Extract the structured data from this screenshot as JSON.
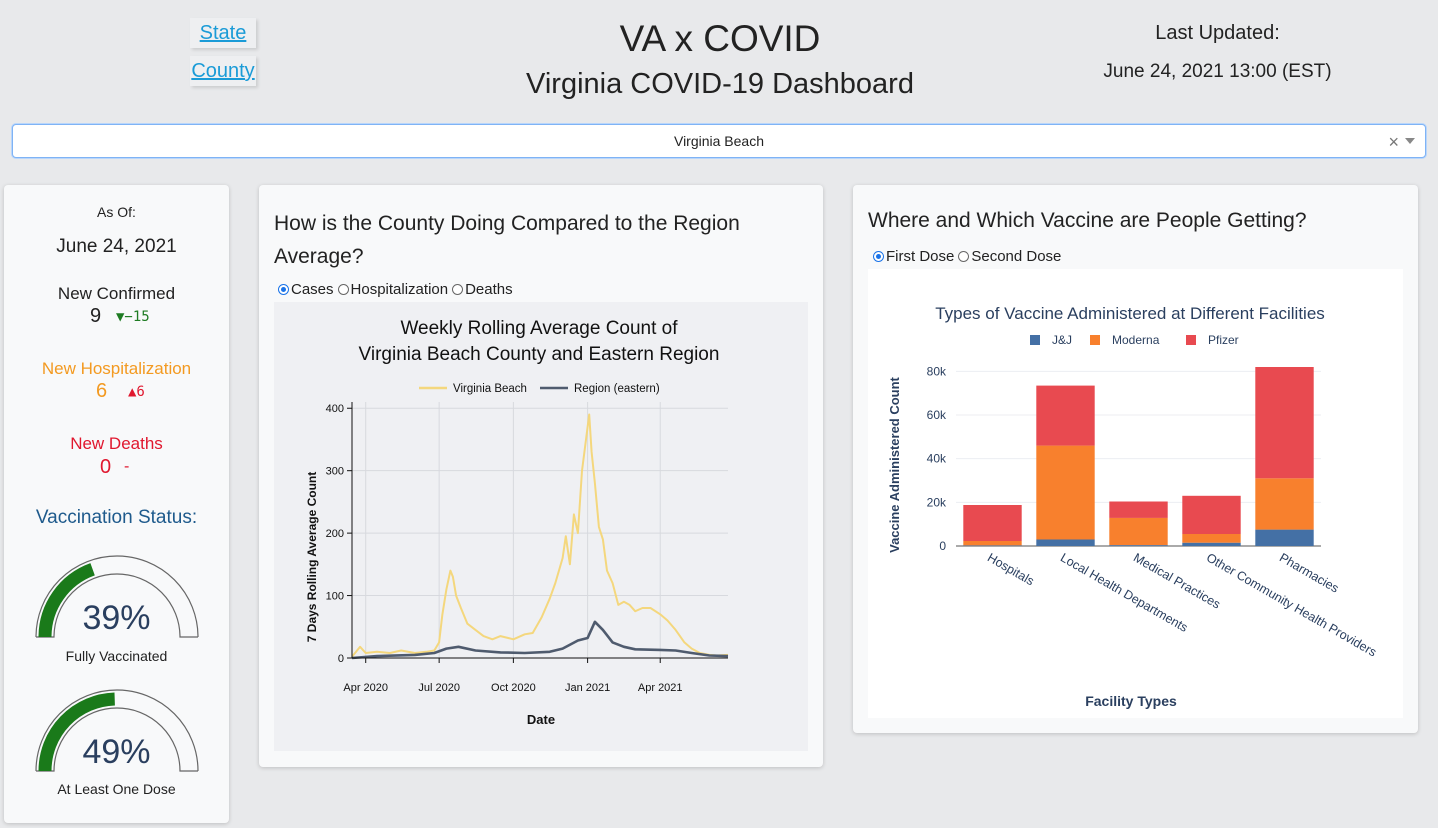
{
  "header": {
    "nav": {
      "state_label": "State",
      "county_label": "County"
    },
    "title": "VA x COVID",
    "subtitle": "Virginia COVID-19 Dashboard",
    "last_updated_label": "Last Updated:",
    "last_updated_value": "June 24, 2021 13:00 (EST)"
  },
  "selector": {
    "value": "Virginia Beach",
    "clear_glyph": "×"
  },
  "stats": {
    "as_of_label": "As Of:",
    "as_of_date": "June 24, 2021",
    "confirmed": {
      "label": "New Confirmed",
      "value": "9",
      "delta": "▼−15",
      "color": "#1e7b22"
    },
    "hospitalization": {
      "label": "New Hospitalization",
      "value": "6",
      "delta": "▲6",
      "color": "#f39a21",
      "delta_color": "#e0172e"
    },
    "deaths": {
      "label": "New Deaths",
      "value": "0",
      "delta": "-",
      "color": "#e0172e"
    },
    "vaccination_title": "Vaccination Status:",
    "gauges": [
      {
        "value": "39%",
        "fraction": 0.39,
        "label": "Fully Vaccinated"
      },
      {
        "value": "49%",
        "fraction": 0.49,
        "label": "At Least One Dose"
      }
    ]
  },
  "left_panel": {
    "question": "How is the County Doing Compared to the Region Average?",
    "options": [
      "Cases",
      "Hospitalization",
      "Deaths"
    ],
    "selected": "Cases"
  },
  "right_panel": {
    "question": "Where and Which Vaccine are People Getting?",
    "options": [
      "First Dose",
      "Second Dose"
    ],
    "selected": "First Dose"
  },
  "colors": {
    "accent": "#1a73e8",
    "county_line": "#f4d77d",
    "region_line": "#4f5b6e",
    "jj": "#4470a5",
    "moderna": "#f8802d",
    "pfizer": "#e84a50",
    "gauge": "#1a7a1a",
    "vax_title": "#1e5a8c"
  },
  "chart_data": [
    {
      "type": "line",
      "title_line1": "Weekly Rolling Average Count of",
      "title_line2": "Virginia Beach County and Eastern Region",
      "xlabel": "Date",
      "ylabel": "7 Days Rolling Average Count",
      "ylim": [
        0,
        410
      ],
      "y_ticks": [
        0,
        100,
        200,
        300,
        400
      ],
      "x_ticks": [
        "Apr 2020",
        "Jul 2020",
        "Oct 2020",
        "Jan 2021",
        "Apr 2021"
      ],
      "x_tick_dates": [
        "2020-04-01",
        "2020-07-01",
        "2020-10-01",
        "2021-01-01",
        "2021-04-01"
      ],
      "x_range": [
        "2020-03-15",
        "2021-06-24"
      ],
      "grid": true,
      "legend": "top",
      "series": [
        {
          "name": "Virginia Beach",
          "dates": [
            "2020-03-15",
            "2020-03-25",
            "2020-04-01",
            "2020-04-15",
            "2020-05-01",
            "2020-05-15",
            "2020-06-01",
            "2020-06-15",
            "2020-06-25",
            "2020-07-01",
            "2020-07-05",
            "2020-07-10",
            "2020-07-15",
            "2020-07-18",
            "2020-07-22",
            "2020-07-28",
            "2020-08-05",
            "2020-08-15",
            "2020-08-25",
            "2020-09-05",
            "2020-09-15",
            "2020-10-01",
            "2020-10-15",
            "2020-10-25",
            "2020-11-05",
            "2020-11-15",
            "2020-11-22",
            "2020-12-01",
            "2020-12-05",
            "2020-12-10",
            "2020-12-15",
            "2020-12-20",
            "2020-12-25",
            "2020-12-30",
            "2021-01-03",
            "2021-01-06",
            "2021-01-10",
            "2021-01-15",
            "2021-01-20",
            "2021-01-25",
            "2021-02-01",
            "2021-02-08",
            "2021-02-15",
            "2021-02-22",
            "2021-03-01",
            "2021-03-10",
            "2021-03-20",
            "2021-04-01",
            "2021-04-10",
            "2021-04-20",
            "2021-05-01",
            "2021-05-10",
            "2021-05-20",
            "2021-06-01",
            "2021-06-10",
            "2021-06-24"
          ],
          "values": [
            2,
            18,
            8,
            10,
            8,
            12,
            8,
            10,
            12,
            25,
            70,
            110,
            140,
            130,
            100,
            80,
            55,
            45,
            35,
            30,
            35,
            30,
            38,
            40,
            65,
            95,
            120,
            160,
            195,
            150,
            230,
            200,
            300,
            350,
            390,
            330,
            280,
            210,
            190,
            140,
            120,
            85,
            90,
            85,
            75,
            80,
            80,
            70,
            60,
            45,
            25,
            15,
            8,
            5,
            4,
            5
          ]
        },
        {
          "name": "Region (eastern)",
          "dates": [
            "2020-03-15",
            "2020-04-15",
            "2020-06-01",
            "2020-06-25",
            "2020-07-10",
            "2020-07-25",
            "2020-08-15",
            "2020-09-15",
            "2020-10-15",
            "2020-11-15",
            "2020-12-01",
            "2020-12-20",
            "2021-01-01",
            "2021-01-10",
            "2021-01-20",
            "2021-02-01",
            "2021-02-15",
            "2021-03-01",
            "2021-04-01",
            "2021-04-20",
            "2021-05-10",
            "2021-06-01",
            "2021-06-24"
          ],
          "values": [
            0,
            3,
            5,
            8,
            15,
            18,
            12,
            9,
            8,
            10,
            15,
            28,
            32,
            58,
            45,
            25,
            18,
            14,
            13,
            12,
            8,
            4,
            3
          ]
        }
      ]
    },
    {
      "type": "bar",
      "stacked": true,
      "title": "Types of Vaccine Administered at Different Facilities",
      "xlabel": "Facility Types",
      "ylabel": "Vaccine Administered Count",
      "ylim": [
        0,
        82000
      ],
      "y_ticks": [
        0,
        20000,
        40000,
        60000,
        80000
      ],
      "y_tick_labels": [
        "0",
        "20k",
        "40k",
        "60k",
        "80k"
      ],
      "legend": "top",
      "categories": [
        "Hospitals",
        "Local Health Departments",
        "Medical Practices",
        "Other Community Health Providers",
        "Pharmacies"
      ],
      "series": [
        {
          "name": "J&J",
          "values": [
            300,
            3000,
            400,
            1500,
            7500
          ]
        },
        {
          "name": "Moderna",
          "values": [
            2000,
            43000,
            12500,
            4000,
            23500
          ]
        },
        {
          "name": "Pfizer",
          "values": [
            16500,
            27500,
            7500,
            17500,
            51000
          ]
        }
      ]
    }
  ]
}
